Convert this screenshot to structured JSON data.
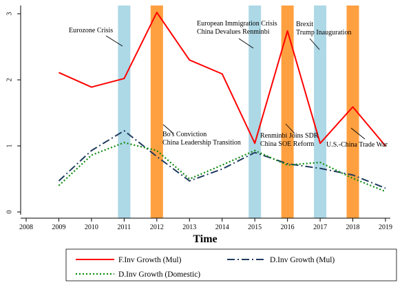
{
  "chart_data": {
    "type": "line",
    "xlabel": "Time",
    "ylabel": "",
    "title": "",
    "xlim": [
      2008,
      2019
    ],
    "ylim": [
      0,
      3
    ],
    "x_ticks": [
      "2008",
      "2009",
      "2010",
      "2011",
      "2012",
      "2013",
      "2014",
      "2015",
      "2016",
      "2017",
      "2018",
      "2019"
    ],
    "y_ticks": [
      "0",
      "1",
      "2",
      "3"
    ],
    "grid": false,
    "legend_position": "bottom",
    "x": [
      2009,
      2010,
      2011,
      2012,
      2013,
      2014,
      2015,
      2016,
      2017,
      2018,
      2019
    ],
    "series": [
      {
        "name": "F.Inv Growth (Mul)",
        "color": "#ff0000",
        "style": "solid",
        "values": [
          2.11,
          1.89,
          2.02,
          3.02,
          2.3,
          2.09,
          1.04,
          2.74,
          1.04,
          1.59,
          1.0
        ]
      },
      {
        "name": "D.Inv Growth (Mul)",
        "color": "#1f3a5f",
        "style": "dashdot",
        "values": [
          0.47,
          0.93,
          1.23,
          0.84,
          0.47,
          0.65,
          0.9,
          0.73,
          0.66,
          0.56,
          0.36
        ]
      },
      {
        "name": "D.Inv Growth (Domestic)",
        "color": "#0a8a0a",
        "style": "dotted",
        "values": [
          0.4,
          0.86,
          1.05,
          0.93,
          0.5,
          0.71,
          0.93,
          0.71,
          0.75,
          0.51,
          0.31
        ]
      }
    ],
    "bands": [
      {
        "x": 2011,
        "color": "#add8e6"
      },
      {
        "x": 2012,
        "color": "#ffa040"
      },
      {
        "x": 2015,
        "color": "#add8e6"
      },
      {
        "x": 2016,
        "color": "#ffa040"
      },
      {
        "x": 2017,
        "color": "#add8e6"
      },
      {
        "x": 2018,
        "color": "#ffa040"
      }
    ],
    "annotations": [
      {
        "lines": [
          "Eurozone Crisis"
        ],
        "x": 2011
      },
      {
        "lines": [
          "Bo's Conviction",
          "China Leadership Transition"
        ],
        "x": 2012
      },
      {
        "lines": [
          "European Immigration Crisis",
          "China Devalues Renminbi"
        ],
        "x": 2015
      },
      {
        "lines": [
          "Renminbi Joins SDR",
          "China SOE Reform"
        ],
        "x": 2016
      },
      {
        "lines": [
          "Brexit",
          "Trump Inauguration"
        ],
        "x": 2017
      },
      {
        "lines": [
          "U.S.-China Trade War"
        ],
        "x": 2018
      }
    ]
  }
}
